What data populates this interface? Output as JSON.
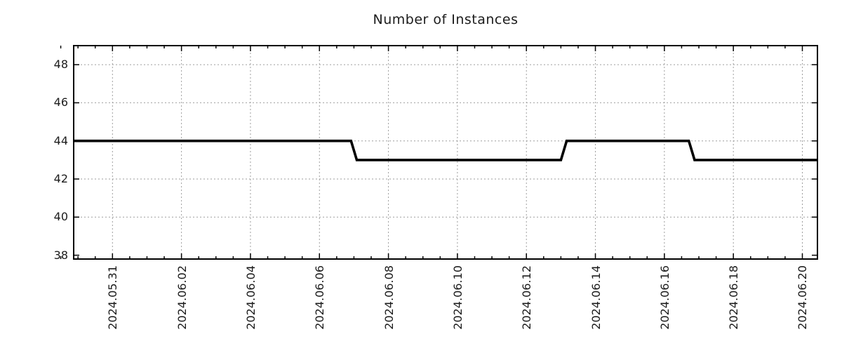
{
  "chart_data": {
    "type": "line",
    "title": "Number of Instances",
    "xlabel": "",
    "ylabel": "",
    "legend_position": "none",
    "grid": true,
    "ylim": [
      37.8,
      49.0
    ],
    "yticks": [
      38,
      40,
      42,
      44,
      46,
      48
    ],
    "xlim": [
      "2024-05-29T21:00:00",
      "2024-06-20T10:30:00"
    ],
    "xticks": [
      {
        "label": "2024.05.31",
        "date": "2024-05-31T00:00:00"
      },
      {
        "label": "2024.06.02",
        "date": "2024-06-02T00:00:00"
      },
      {
        "label": "2024.06.04",
        "date": "2024-06-04T00:00:00"
      },
      {
        "label": "2024.06.06",
        "date": "2024-06-06T00:00:00"
      },
      {
        "label": "2024.06.08",
        "date": "2024-06-08T00:00:00"
      },
      {
        "label": "2024.06.10",
        "date": "2024-06-10T00:00:00"
      },
      {
        "label": "2024.06.12",
        "date": "2024-06-12T00:00:00"
      },
      {
        "label": "2024.06.14",
        "date": "2024-06-14T00:00:00"
      },
      {
        "label": "2024.06.16",
        "date": "2024-06-16T00:00:00"
      },
      {
        "label": "2024.06.18",
        "date": "2024-06-18T00:00:00"
      },
      {
        "label": "2024.06.20",
        "date": "2024-06-20T00:00:00"
      }
    ],
    "minor_xtick_hours": 12,
    "colors": {
      "line": "#000000",
      "grid": "#9e9e9e",
      "border": "#000000",
      "text": "#1c1c1c",
      "background": "#ffffff"
    },
    "series": [
      {
        "name": "instances",
        "points": [
          [
            "2024-05-29T21:00:00",
            44
          ],
          [
            "2024-06-06T22:00:00",
            44
          ],
          [
            "2024-06-07T02:00:00",
            43
          ],
          [
            "2024-06-13T00:00:00",
            43
          ],
          [
            "2024-06-13T04:00:00",
            44
          ],
          [
            "2024-06-16T17:00:00",
            44
          ],
          [
            "2024-06-16T21:00:00",
            43
          ],
          [
            "2024-06-20T10:30:00",
            43
          ]
        ]
      }
    ]
  }
}
